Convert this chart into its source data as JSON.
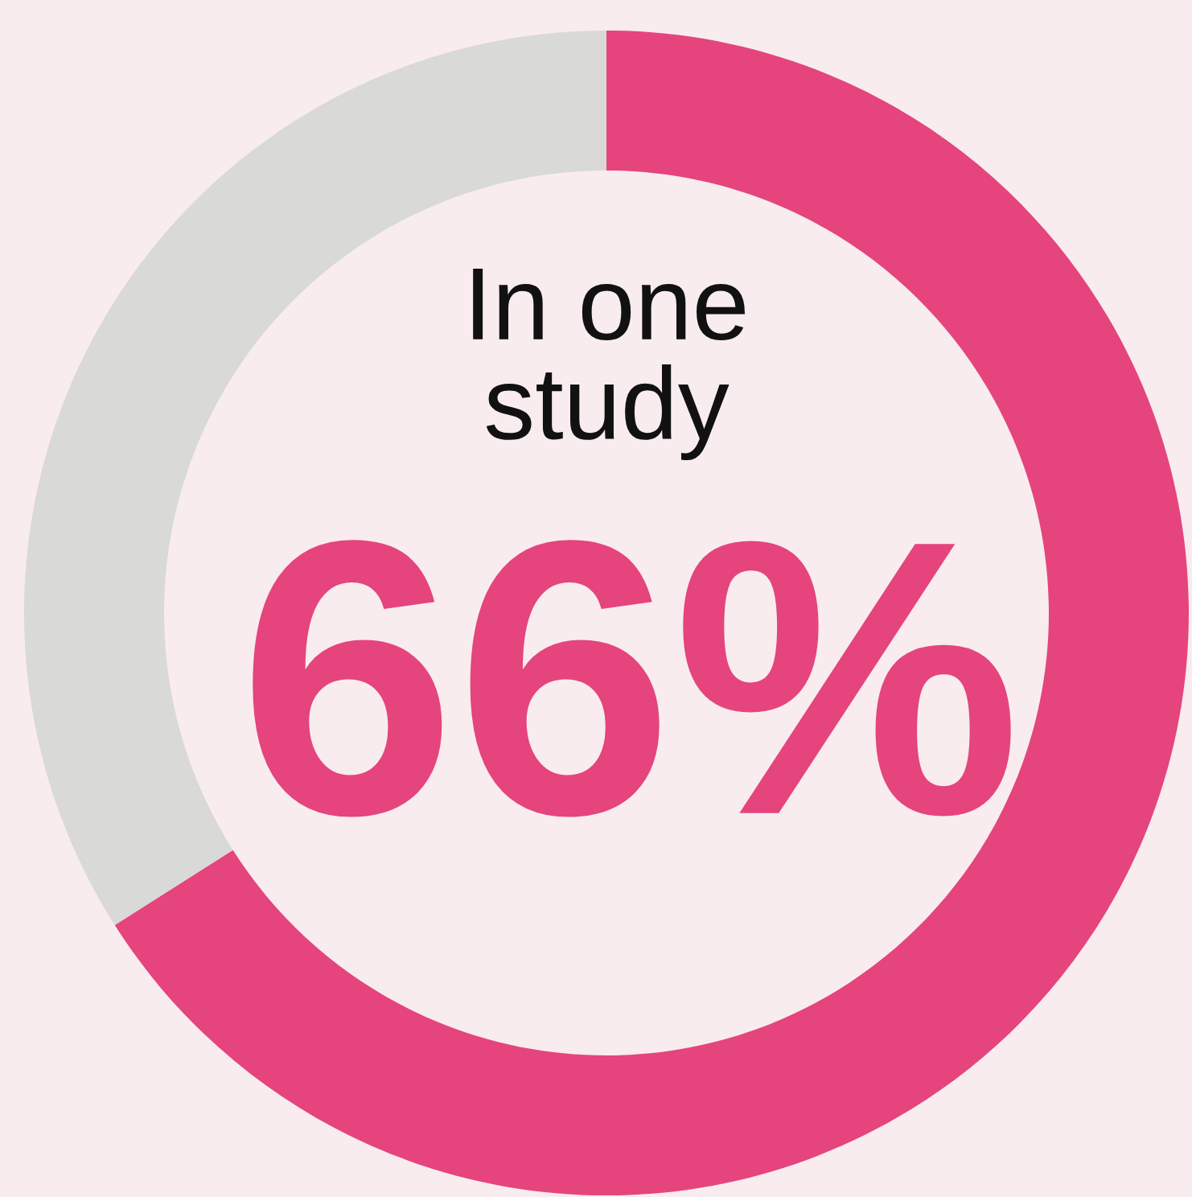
{
  "chart_data": {
    "type": "donut",
    "categories": [
      null,
      null
    ],
    "values": [
      66,
      34
    ],
    "colors": [
      "#e5447d",
      "#d9d9d7"
    ],
    "value_labels": [
      "66%",
      null
    ],
    "annotations": [
      "In one\nstudy"
    ]
  }
}
